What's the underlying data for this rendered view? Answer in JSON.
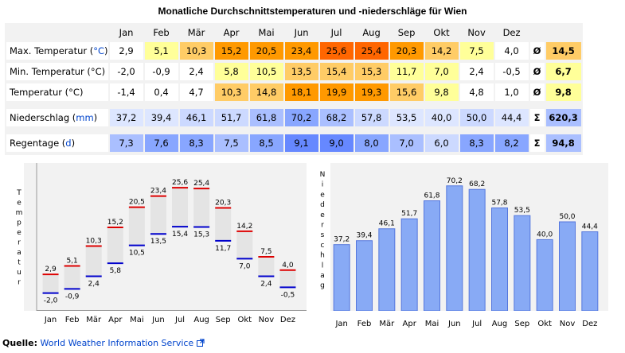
{
  "title": "Monatliche Durchschnittstemperaturen und -niederschläge für Wien",
  "table": {
    "months": [
      "Jan",
      "Feb",
      "Mär",
      "Apr",
      "Mai",
      "Jun",
      "Jul",
      "Aug",
      "Sep",
      "Okt",
      "Nov",
      "Dez"
    ],
    "rows": [
      {
        "id": "max",
        "label": "Max. Temperatur (",
        "unit": "°C",
        "label_end": ")",
        "values": [
          "2,9",
          "5,1",
          "10,3",
          "15,2",
          "20,5",
          "23,4",
          "25,6",
          "25,4",
          "20,3",
          "14,2",
          "7,5",
          "4,0"
        ],
        "colors": [
          "#ffffff",
          "#ffff99",
          "#ffcc66",
          "#ff9900",
          "#ff9900",
          "#ff9900",
          "#ff6600",
          "#ff6600",
          "#ff9900",
          "#ffcc66",
          "#ffff99",
          "#ffffff"
        ],
        "symbol": "Ø",
        "total": "14,5",
        "total_color": "#ffcc66"
      },
      {
        "id": "min",
        "label": "Min. Temperatur (°C)",
        "unit": "",
        "label_end": "",
        "values": [
          "-2,0",
          "-0,9",
          "2,4",
          "5,8",
          "10,5",
          "13,5",
          "15,4",
          "15,3",
          "11,7",
          "7,0",
          "2,4",
          "-0,5"
        ],
        "colors": [
          "#ffffff",
          "#ffffff",
          "#ffffff",
          "#ffff99",
          "#ffff99",
          "#ffcc66",
          "#ffcc66",
          "#ffcc66",
          "#ffff99",
          "#ffff99",
          "#ffffff",
          "#ffffff"
        ],
        "symbol": "Ø",
        "total": "6,7",
        "total_color": "#ffff99"
      },
      {
        "id": "avg",
        "label": "Temperatur (°C)",
        "unit": "",
        "label_end": "",
        "values": [
          "-1,4",
          "0,4",
          "4,7",
          "10,3",
          "14,8",
          "18,1",
          "19,9",
          "19,3",
          "15,6",
          "9,8",
          "4,8",
          "1,0"
        ],
        "colors": [
          "#ffffff",
          "#ffffff",
          "#ffffff",
          "#ffcc66",
          "#ffcc66",
          "#ff9900",
          "#ff9900",
          "#ff9900",
          "#ffcc66",
          "#ffff99",
          "#ffffff",
          "#ffffff"
        ],
        "symbol": "Ø",
        "total": "9,8",
        "total_color": "#ffff99"
      },
      {
        "id": "prec",
        "label": "Niederschlag (",
        "unit": "mm",
        "label_end": ")",
        "values": [
          "37,2",
          "39,4",
          "46,1",
          "51,7",
          "61,8",
          "70,2",
          "68,2",
          "57,8",
          "53,5",
          "40,0",
          "50,0",
          "44,4"
        ],
        "colors": [
          "#dde6ff",
          "#dde6ff",
          "#ccd9ff",
          "#ccd9ff",
          "#aabfff",
          "#88a6ff",
          "#aabfff",
          "#ccd9ff",
          "#dde6ff",
          "#dde6ff",
          "#ccd9ff",
          "#dde6ff"
        ],
        "symbol": "Σ",
        "total": "620,3",
        "total_color": "#aabfff"
      },
      {
        "id": "days",
        "label": "Regentage (",
        "unit": "d",
        "label_end": ")",
        "values": [
          "7,3",
          "7,6",
          "8,3",
          "7,5",
          "8,5",
          "9,1",
          "9,0",
          "8,0",
          "7,0",
          "6,0",
          "8,3",
          "8,2"
        ],
        "colors": [
          "#aabfff",
          "#88a6ff",
          "#88a6ff",
          "#aabfff",
          "#88a6ff",
          "#6688ff",
          "#6688ff",
          "#88a6ff",
          "#aabfff",
          "#ccd9ff",
          "#88a6ff",
          "#88a6ff"
        ],
        "symbol": "Σ",
        "total": "94,8",
        "total_color": "#aabfff"
      }
    ]
  },
  "chart_data": [
    {
      "type": "bar",
      "ylabel": "Temperatur",
      "categories": [
        "Jan",
        "Feb",
        "Mär",
        "Apr",
        "Mai",
        "Jun",
        "Jul",
        "Aug",
        "Sep",
        "Okt",
        "Nov",
        "Dez"
      ],
      "series": [
        {
          "name": "Max.",
          "values": [
            2.9,
            5.1,
            10.3,
            15.2,
            20.5,
            23.4,
            25.6,
            25.4,
            20.3,
            14.2,
            7.5,
            4.0
          ],
          "labels": [
            "2,9",
            "5,1",
            "10,3",
            "15,2",
            "20,5",
            "23,4",
            "25,6",
            "25,4",
            "20,3",
            "14,2",
            "7,5",
            "4,0"
          ],
          "color": "#dd0000"
        },
        {
          "name": "Min.",
          "values": [
            -2.0,
            -0.9,
            2.4,
            5.8,
            10.5,
            13.5,
            15.4,
            15.3,
            11.7,
            7.0,
            2.4,
            -0.5
          ],
          "labels": [
            "-2,0",
            "-0,9",
            "2,4",
            "5,8",
            "10,5",
            "13,5",
            "15,4",
            "15,3",
            "11,7",
            "7,0",
            "2,4",
            "-0,5"
          ],
          "color": "#0000cc"
        }
      ],
      "ylim": [
        -5,
        30
      ],
      "range_fill": "#e4e4e4"
    },
    {
      "type": "bar",
      "ylabel": "Niederschlag",
      "categories": [
        "Jan",
        "Feb",
        "Mär",
        "Apr",
        "Mai",
        "Jun",
        "Jul",
        "Aug",
        "Sep",
        "Okt",
        "Nov",
        "Dez"
      ],
      "values": [
        37.2,
        39.4,
        46.1,
        51.7,
        61.8,
        70.2,
        68.2,
        57.8,
        53.5,
        40.0,
        50.0,
        44.4
      ],
      "labels": [
        "37,2",
        "39,4",
        "46,1",
        "51,7",
        "61,8",
        "70,2",
        "68,2",
        "57,8",
        "53,5",
        "40,0",
        "50,0",
        "44,4"
      ],
      "ylim": [
        0,
        75
      ],
      "color": "#88aaf5",
      "edge": "#5577dd"
    }
  ],
  "source": {
    "label": "Quelle:",
    "link_text": "World Weather Information Service",
    "link_icon": "external-link-icon"
  }
}
